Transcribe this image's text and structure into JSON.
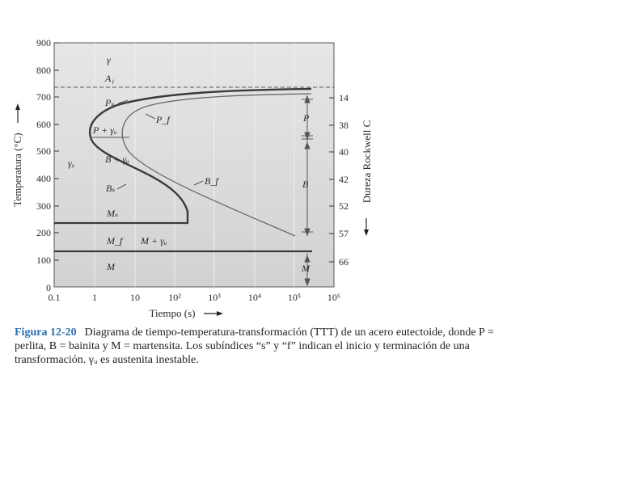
{
  "diagram": {
    "y_axis": {
      "label": "Temperatura (°C)",
      "ticks": [
        "900",
        "800",
        "700",
        "600",
        "500",
        "400",
        "300",
        "200",
        "100",
        "0"
      ]
    },
    "x_axis": {
      "label": "Tiempo (s)",
      "ticks": [
        "0.1",
        "1",
        "10",
        "10²",
        "10³",
        "10⁴",
        "10⁵",
        "10⁶"
      ]
    },
    "right_axis": {
      "label": "Dureza Rockwell C",
      "ticks": [
        "14",
        "38",
        "40",
        "42",
        "52",
        "57",
        "66"
      ]
    },
    "regions": {
      "gamma": "γ",
      "a1": "A₁",
      "ps": "Pₛ",
      "pf": "P_f",
      "p_gamma": "P + γᵤ",
      "gamma_u": "γᵤ",
      "b_gamma": "B + γᵤ",
      "bs": "Bₛ",
      "bf": "B_f",
      "ms": "Mₛ",
      "mf": "M_f",
      "m_gamma": "M + γᵤ",
      "m": "M"
    },
    "brackets": {
      "p": "P",
      "b": "B",
      "m": "M"
    }
  },
  "caption": {
    "label": "Figura 12-20",
    "text": "Diagrama de tiempo-temperatura-transformación (TTT) de un acero eutectoide, donde P = perlita, B = bainita y M = martensita. Los subíndices “s” y “f” indican el inicio y terminación de una transformación. γᵤ es austenita inestable."
  }
}
